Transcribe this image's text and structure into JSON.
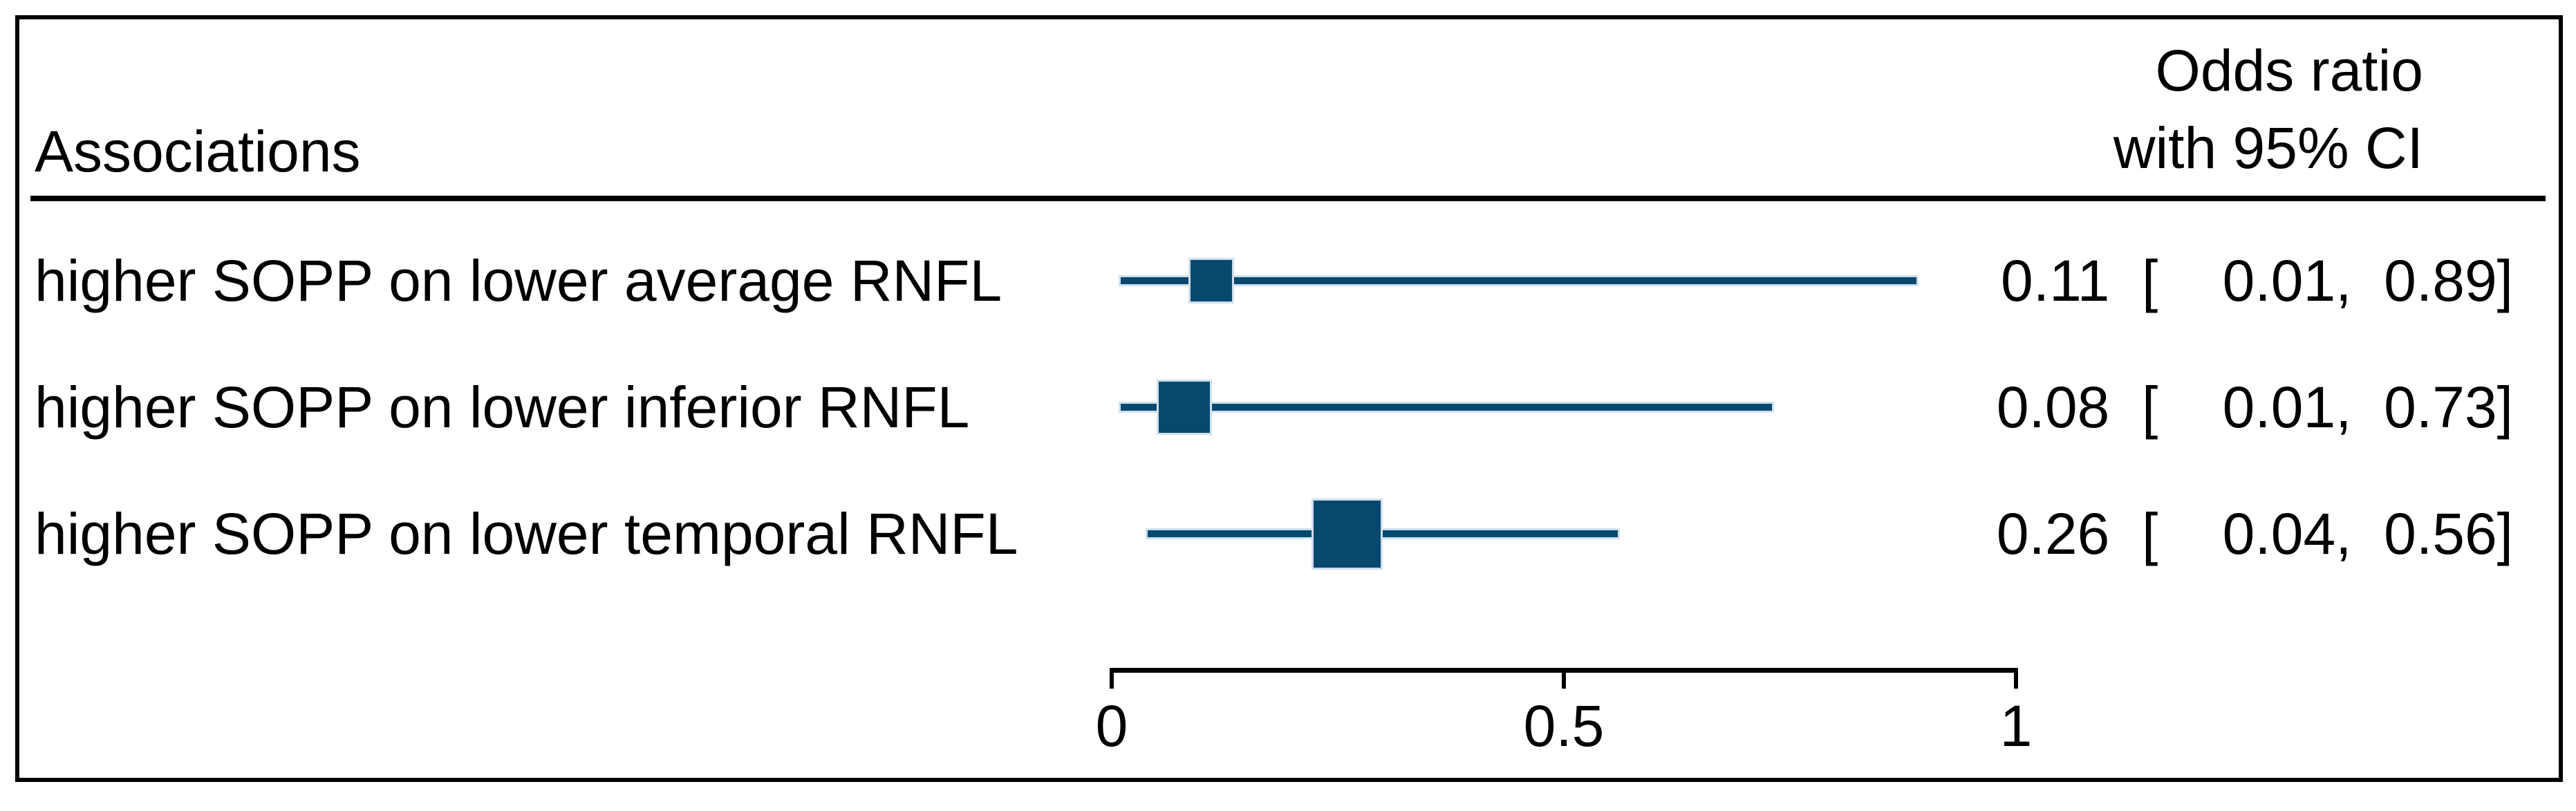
{
  "header": {
    "left": "Associations",
    "right_line1": "Odds ratio",
    "right_line2": "with 95% CI"
  },
  "rows": [
    {
      "label": "higher SOPP on lower average RNFL",
      "value_display": "0.11  [    0.01,  0.89]"
    },
    {
      "label": "higher SOPP on lower inferior RNFL",
      "value_display": "0.08  [    0.01,  0.73]"
    },
    {
      "label": "higher SOPP on lower temporal RNFL",
      "value_display": "0.26  [    0.04,  0.56]"
    }
  ],
  "colors": {
    "marker_navy": "#07486F",
    "marker_halo": "#cfe0ec",
    "text": "#000000",
    "frame": "#000000"
  },
  "chart_data": {
    "type": "forest",
    "title": "",
    "left_column_header": "Associations",
    "right_column_header": "Odds ratio with 95% CI",
    "rows": [
      {
        "label": "higher SOPP on lower average RNFL",
        "odds_ratio": 0.11,
        "ci_low": 0.01,
        "ci_high": 0.89,
        "marker_px": 60
      },
      {
        "label": "higher SOPP on lower inferior RNFL",
        "odds_ratio": 0.08,
        "ci_low": 0.01,
        "ci_high": 0.73,
        "marker_px": 74
      },
      {
        "label": "higher SOPP on lower temporal RNFL",
        "odds_ratio": 0.26,
        "ci_low": 0.04,
        "ci_high": 0.56,
        "marker_px": 97
      }
    ],
    "xaxis": {
      "min": 0,
      "max": 1,
      "ticks": [
        {
          "value": 0,
          "label": "0"
        },
        {
          "value": 0.5,
          "label": "0.5"
        },
        {
          "value": 1,
          "label": "1"
        }
      ]
    },
    "grid": false,
    "legend": false
  }
}
